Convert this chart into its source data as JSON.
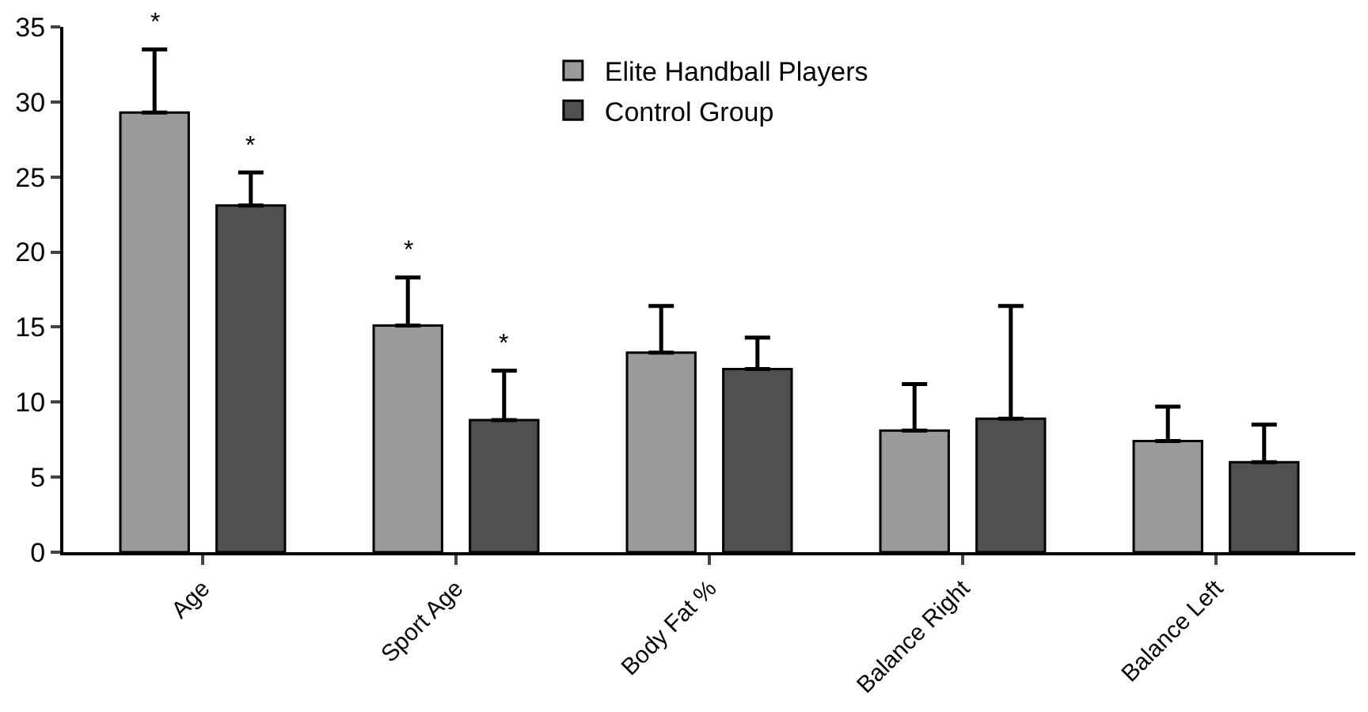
{
  "chart_data": {
    "type": "bar",
    "categories": [
      "Age",
      "Sport Age",
      "Body Fat %",
      "Balance Right",
      "Balance Left"
    ],
    "series": [
      {
        "name": "Elite Handball Players",
        "color": "#9a9a9a",
        "values": [
          29.3,
          15.1,
          13.3,
          8.1,
          7.4
        ],
        "errors": [
          4.2,
          3.2,
          3.1,
          3.1,
          2.3
        ],
        "value_labels": [
          "*",
          "*",
          null,
          null,
          null
        ]
      },
      {
        "name": "Control Group",
        "color": "#505050",
        "values": [
          23.1,
          8.8,
          12.2,
          8.9,
          6.0
        ],
        "errors": [
          2.2,
          3.3,
          2.1,
          7.5,
          2.5
        ],
        "value_labels": [
          "*",
          "*",
          null,
          null,
          null
        ]
      }
    ],
    "ylim": [
      0,
      35
    ],
    "yticks": [
      0,
      5,
      10,
      15,
      20,
      25,
      30,
      35
    ],
    "legend": "top"
  }
}
